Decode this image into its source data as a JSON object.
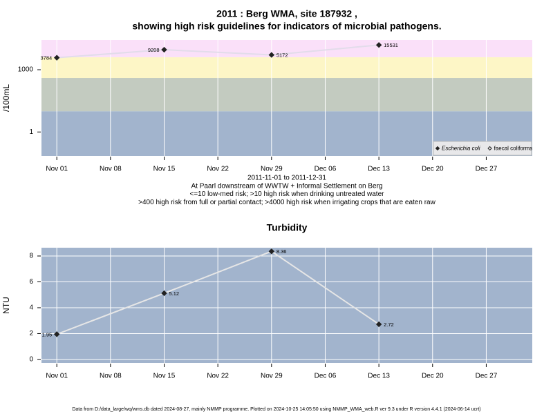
{
  "chart_data": [
    {
      "type": "line",
      "title": [
        "2011 : Berg WMA, site 187932 ,",
        "showing high risk guidelines for indicators of microbial pathogens."
      ],
      "notes": [
        "2011-11-01 to 2011-12-31",
        "At Paarl downstream of WWTW + Informal Settlement on Berg",
        "<=10 low-med risk; >10 high risk when drinking untreated water",
        ">400 high risk from full or partial contact; >4000 high risk when irrigating crops that are eaten raw"
      ],
      "ylabel": "/100mL",
      "x": [
        "2011-11-01",
        "2011-11-15",
        "2011-11-29",
        "2011-12-13"
      ],
      "series": [
        {
          "name": "Escherichia coli",
          "color": "#222222",
          "line_color": "#e2dcea",
          "marker": "filled",
          "values": [
            3784,
            9208,
            5172,
            15531
          ]
        },
        {
          "name": "faecal coliforms",
          "color": "#222222",
          "line_color": "#e2dcea",
          "marker": "open",
          "values": [
            null,
            null,
            null,
            null
          ]
        }
      ],
      "log": true,
      "ylim": [
        0.07,
        27000
      ],
      "yticks": [
        1,
        1000
      ],
      "xlim": [
        "2011-10-30",
        "2012-01-02"
      ],
      "xticks": [
        {
          "value": "2011-11-01",
          "label": "Nov 01"
        },
        {
          "value": "2011-11-08",
          "label": "Nov 08"
        },
        {
          "value": "2011-11-15",
          "label": "Nov 15"
        },
        {
          "value": "2011-11-22",
          "label": "Nov 22"
        },
        {
          "value": "2011-11-29",
          "label": "Nov 29"
        },
        {
          "value": "2011-12-06",
          "label": "Dec 06"
        },
        {
          "value": "2011-12-13",
          "label": "Dec 13"
        },
        {
          "value": "2011-12-20",
          "label": "Dec 20"
        },
        {
          "value": "2011-12-27",
          "label": "Dec 27"
        }
      ],
      "xgrid": true,
      "ygrid": false,
      "bands": [
        {
          "from": 0.07,
          "to": 10,
          "color": "#a2b4cd"
        },
        {
          "from": 10,
          "to": 400,
          "color": "#c3cbc0"
        },
        {
          "from": 400,
          "to": 4000,
          "color": "#fdf6c6"
        },
        {
          "from": 4000,
          "to": 27000,
          "color": "#fae0f9"
        }
      ],
      "legend": "bottom-right"
    },
    {
      "type": "line",
      "title": [
        "Turbidity"
      ],
      "ylabel": "NTU",
      "x": [
        "2011-11-01",
        "2011-11-15",
        "2011-11-29",
        "2011-12-13"
      ],
      "series": [
        {
          "name": "Turbidity",
          "color": "#222222",
          "line_color": "#e6e6e6",
          "marker": "filled",
          "values": [
            1.95,
            5.12,
            8.36,
            2.72
          ]
        }
      ],
      "log": false,
      "ylim": [
        -0.27,
        8.64
      ],
      "yticks": [
        0,
        2,
        4,
        6,
        8
      ],
      "xlim": [
        "2011-10-30",
        "2012-01-02"
      ],
      "xticks": [
        {
          "value": "2011-11-01",
          "label": "Nov 01"
        },
        {
          "value": "2011-11-08",
          "label": "Nov 08"
        },
        {
          "value": "2011-11-15",
          "label": "Nov 15"
        },
        {
          "value": "2011-11-22",
          "label": "Nov 22"
        },
        {
          "value": "2011-11-29",
          "label": "Nov 29"
        },
        {
          "value": "2011-12-06",
          "label": "Dec 06"
        },
        {
          "value": "2011-12-13",
          "label": "Dec 13"
        },
        {
          "value": "2011-12-20",
          "label": "Dec 20"
        },
        {
          "value": "2011-12-27",
          "label": "Dec 27"
        }
      ],
      "xgrid": true,
      "ygrid": true,
      "background": "#a2b4cd"
    }
  ],
  "footer": "Data from D:/data_large/wq/wms.db dated 2024-08-27, mainly NMMP programme. Plotted on 2024-10-25 14:05:50 using NMMP_WMA_web.R ver 9.3 under R version 4.4.1 (2024-06-14 ucrt)"
}
